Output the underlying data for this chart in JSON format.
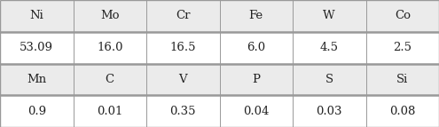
{
  "rows": [
    [
      "Ni",
      "Mo",
      "Cr",
      "Fe",
      "W",
      "Co"
    ],
    [
      "53.09",
      "16.0",
      "16.5",
      "6.0",
      "4.5",
      "2.5"
    ],
    [
      "Mn",
      "C",
      "V",
      "P",
      "S",
      "Si"
    ],
    [
      "0.9",
      "0.01",
      "0.35",
      "0.04",
      "0.03",
      "0.08"
    ]
  ],
  "n_cols": 6,
  "header_rows": [
    0,
    2
  ],
  "data_rows": [
    1,
    3
  ],
  "background_color": "#f0f0f0",
  "header_bg": "#ebebeb",
  "data_bg": "#ffffff",
  "border_color": "#999999",
  "text_color": "#222222",
  "font_size": 9.5,
  "outer_lw": 1.0,
  "thick_lw": 1.8,
  "thin_lw": 0.7
}
